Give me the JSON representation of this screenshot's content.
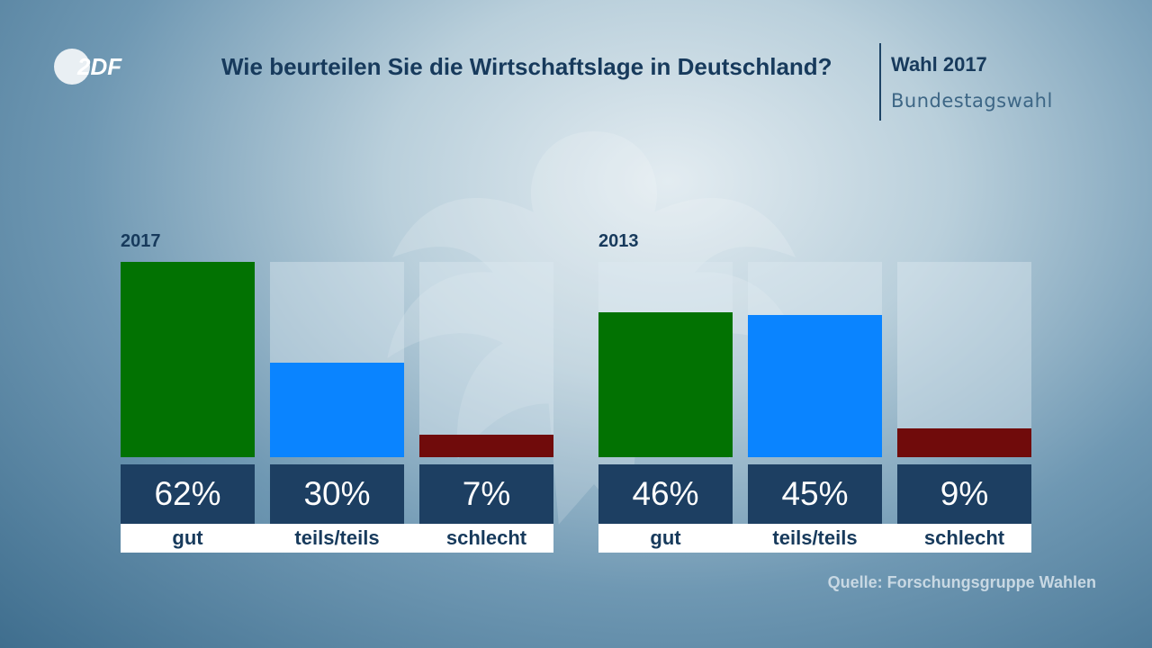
{
  "header": {
    "title": "Wie beurteilen Sie die Wirtschaftslage in Deutschland?",
    "wahl": "Wahl 2017",
    "bundestagswahl": "Bundestagswahl"
  },
  "logo": {
    "text": "2DF"
  },
  "source": "Quelle: Forschungsgruppe Wahlen",
  "colors": {
    "gut": "#027202",
    "teils": "#0a84ff",
    "schlecht": "#700b0b",
    "value_box": "#1d3f62"
  },
  "chart_data": [
    {
      "type": "bar",
      "title": "2017",
      "categories": [
        "gut",
        "teils/teils",
        "schlecht"
      ],
      "values": [
        62,
        30,
        7
      ],
      "value_labels": [
        "62%",
        "30%",
        "7%"
      ],
      "ylim": [
        0,
        62
      ]
    },
    {
      "type": "bar",
      "title": "2013",
      "categories": [
        "gut",
        "teils/teils",
        "schlecht"
      ],
      "values": [
        46,
        45,
        9
      ],
      "value_labels": [
        "46%",
        "45%",
        "9%"
      ],
      "ylim": [
        0,
        62
      ]
    }
  ]
}
